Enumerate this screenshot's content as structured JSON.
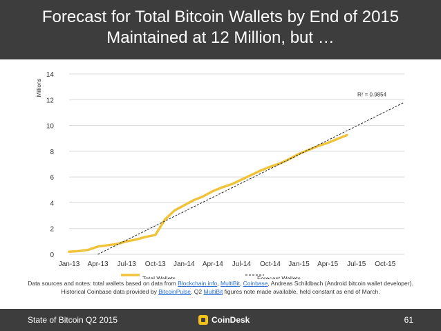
{
  "header": {
    "title_line1": "Forecast for Total Bitcoin Wallets by End of 2015",
    "title_line2": "Maintained at 12 Million, but …"
  },
  "footer": {
    "left": "State of Bitcoin Q2 2015",
    "brand": "CoinDesk",
    "page": "61"
  },
  "notes": {
    "t1": "Data sources and notes: total wallets based on data from ",
    "l1": "Blockchain.info",
    "t2": ", ",
    "l2": "MultiBit",
    "t3": ", ",
    "l3": "Coinbase",
    "t4": ", Andreas Schildbach (Android bitcoin wallet developer).",
    "t5": "Historical Coinbase data provided by ",
    "l4": "BitcoinPulse",
    "t6": ". Q2 ",
    "l5": "MultiBit",
    "t7": " figures note made available, held constant as end of March."
  },
  "colors": {
    "series": "#f0c43a",
    "trend": "#222222",
    "grid": "#d9d9d9",
    "bars": "#3d3d3d",
    "logo": "#f4c21a"
  },
  "chart_data": {
    "type": "line",
    "ylabel": "Millions",
    "ylim": [
      0,
      14
    ],
    "yticks": [
      0,
      2,
      4,
      6,
      8,
      10,
      12,
      14
    ],
    "x_ticks": [
      "Jan-13",
      "Apr-13",
      "Jul-13",
      "Oct-13",
      "Jan-14",
      "Apr-14",
      "Jul-14",
      "Oct-14",
      "Jan-15",
      "Apr-15",
      "Jul-15",
      "Oct-15"
    ],
    "grid": true,
    "legend_position": "bottom",
    "annotation": "R² = 0.9854",
    "series": [
      {
        "name": "Total Wallets",
        "style": "solid",
        "points": [
          [
            "2013-01",
            0.2
          ],
          [
            "2013-02",
            0.25
          ],
          [
            "2013-03",
            0.35
          ],
          [
            "2013-04",
            0.6
          ],
          [
            "2013-05",
            0.7
          ],
          [
            "2013-06",
            0.8
          ],
          [
            "2013-07",
            1.0
          ],
          [
            "2013-08",
            1.15
          ],
          [
            "2013-09",
            1.35
          ],
          [
            "2013-10",
            1.5
          ],
          [
            "2013-11",
            2.7
          ],
          [
            "2013-12",
            3.4
          ],
          [
            "2014-01",
            3.8
          ],
          [
            "2014-02",
            4.2
          ],
          [
            "2014-03",
            4.5
          ],
          [
            "2014-04",
            4.9
          ],
          [
            "2014-05",
            5.2
          ],
          [
            "2014-06",
            5.45
          ],
          [
            "2014-07",
            5.8
          ],
          [
            "2014-08",
            6.15
          ],
          [
            "2014-09",
            6.5
          ],
          [
            "2014-10",
            6.8
          ],
          [
            "2014-11",
            7.05
          ],
          [
            "2014-12",
            7.4
          ],
          [
            "2015-01",
            7.8
          ],
          [
            "2015-02",
            8.1
          ],
          [
            "2015-03",
            8.4
          ],
          [
            "2015-04",
            8.65
          ],
          [
            "2015-05",
            8.95
          ],
          [
            "2015-06",
            9.25
          ]
        ]
      },
      {
        "name": "Forecast Wallets",
        "style": "dashed",
        "points": [
          [
            "2013-04",
            0.0
          ],
          [
            "2015-12",
            11.8
          ]
        ]
      }
    ]
  }
}
